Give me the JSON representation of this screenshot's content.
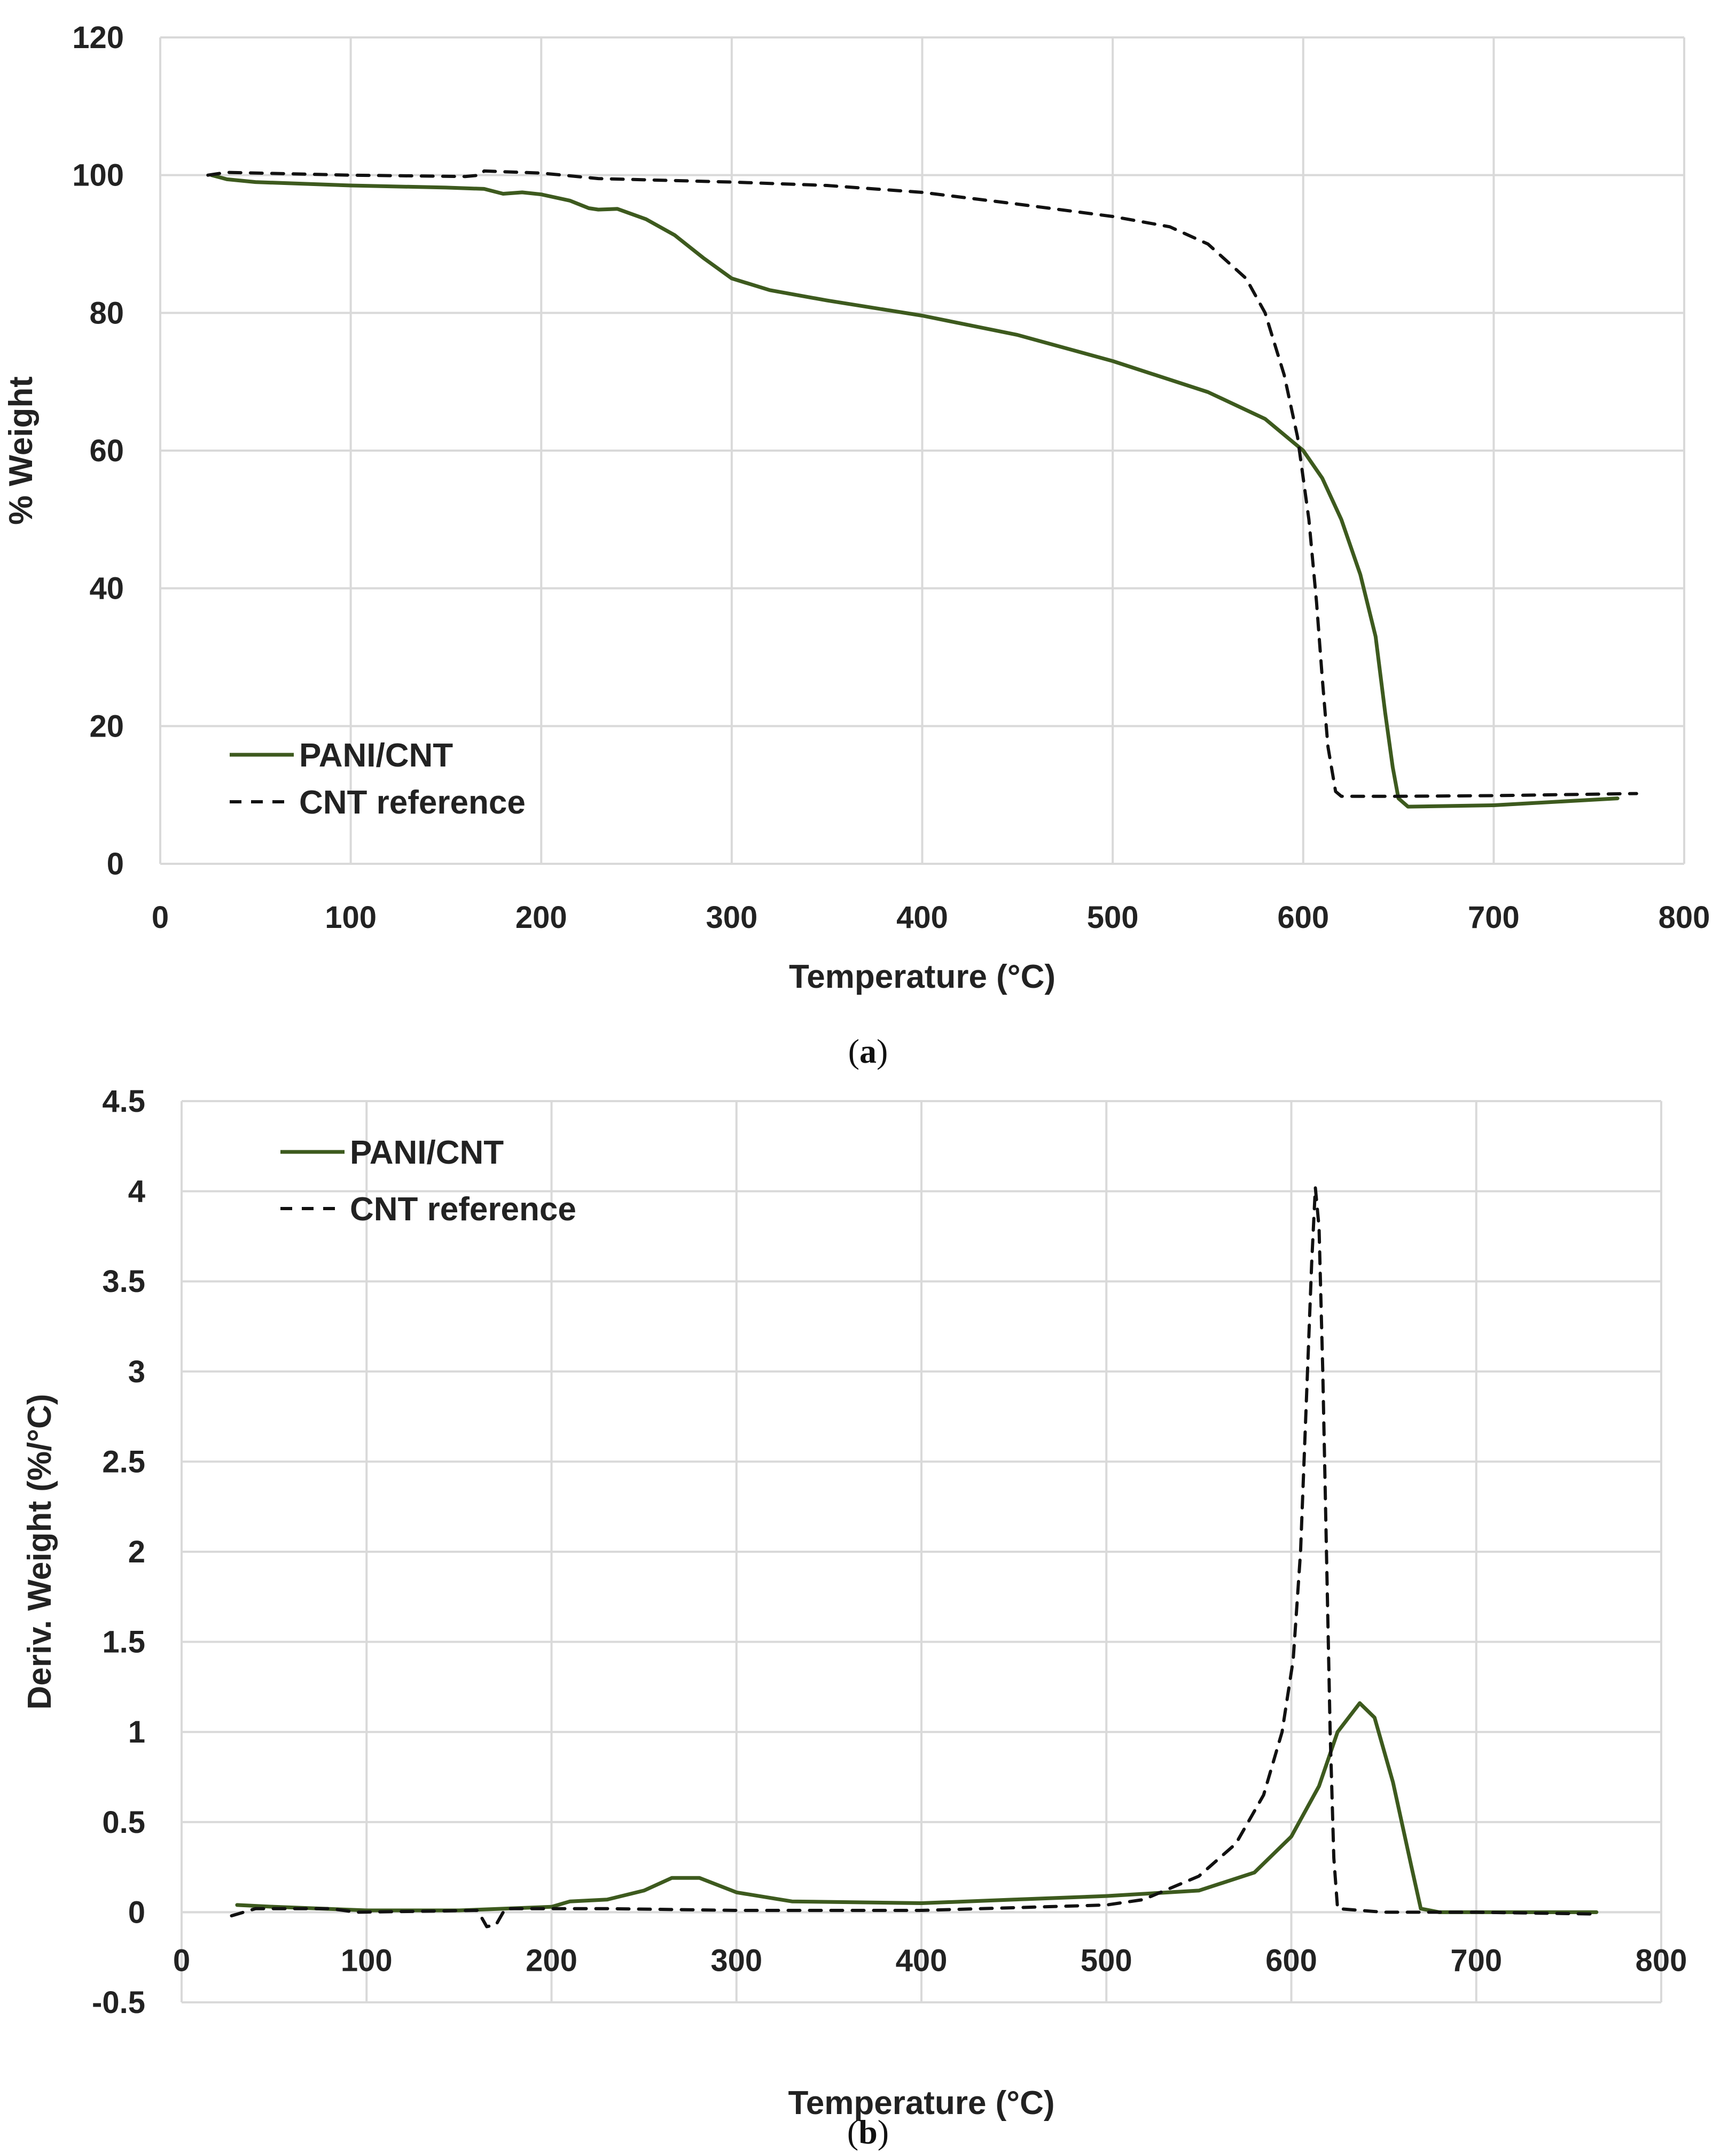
{
  "colors": {
    "pani": "#3d5a1e",
    "cnt": "#111111",
    "grid": "#d9d9d9",
    "text": "#222222"
  },
  "chart_data": [
    {
      "type": "line",
      "panel_label": "a",
      "xlabel": "Temperature (°C)",
      "ylabel": "% Weight",
      "xlim": [
        0,
        800
      ],
      "ylim": [
        0,
        120
      ],
      "x_ticks": [
        0,
        100,
        200,
        300,
        400,
        500,
        600,
        700,
        800
      ],
      "y_ticks": [
        0,
        20,
        40,
        60,
        80,
        100,
        120
      ],
      "grid": true,
      "legend_position": "bottom-left",
      "series": [
        {
          "name": "PANI/CNT",
          "style": "solid",
          "points": [
            [
              27,
              100
            ],
            [
              35,
              99.4
            ],
            [
              50,
              99
            ],
            [
              100,
              98.5
            ],
            [
              150,
              98.2
            ],
            [
              170,
              98
            ],
            [
              180,
              97.3
            ],
            [
              190,
              97.5
            ],
            [
              200,
              97.2
            ],
            [
              215,
              96.3
            ],
            [
              225,
              95.2
            ],
            [
              230,
              95
            ],
            [
              240,
              95.1
            ],
            [
              255,
              93.6
            ],
            [
              270,
              91.3
            ],
            [
              285,
              88
            ],
            [
              300,
              85
            ],
            [
              320,
              83.3
            ],
            [
              350,
              81.8
            ],
            [
              400,
              79.6
            ],
            [
              450,
              76.8
            ],
            [
              500,
              73
            ],
            [
              550,
              68.5
            ],
            [
              580,
              64.6
            ],
            [
              600,
              60
            ],
            [
              610,
              56
            ],
            [
              620,
              50
            ],
            [
              630,
              42
            ],
            [
              638,
              33
            ],
            [
              643,
              22
            ],
            [
              647,
              14
            ],
            [
              650,
              9.5
            ],
            [
              655,
              8.3
            ],
            [
              700,
              8.5
            ],
            [
              765,
              9.5
            ]
          ]
        },
        {
          "name": "CNT reference",
          "style": "dashed",
          "points": [
            [
              25,
              100
            ],
            [
              35,
              100.4
            ],
            [
              100,
              100
            ],
            [
              160,
              99.8
            ],
            [
              168,
              100
            ],
            [
              170,
              100.6
            ],
            [
              200,
              100.3
            ],
            [
              230,
              99.5
            ],
            [
              300,
              99
            ],
            [
              350,
              98.5
            ],
            [
              400,
              97.5
            ],
            [
              450,
              95.8
            ],
            [
              500,
              94
            ],
            [
              530,
              92.5
            ],
            [
              550,
              90
            ],
            [
              570,
              85
            ],
            [
              580,
              80
            ],
            [
              590,
              71
            ],
            [
              597,
              62
            ],
            [
              603,
              50
            ],
            [
              607,
              38
            ],
            [
              610,
              27
            ],
            [
              613,
              17
            ],
            [
              617,
              10.5
            ],
            [
              620,
              9.8
            ],
            [
              650,
              9.8
            ],
            [
              700,
              9.9
            ],
            [
              775,
              10.2
            ]
          ]
        }
      ]
    },
    {
      "type": "line",
      "panel_label": "b",
      "xlabel": "Temperature (°C)",
      "ylabel": "Deriv. Weight (%/°C)",
      "xlim": [
        0,
        800
      ],
      "ylim": [
        -0.5,
        4.5
      ],
      "x_ticks": [
        0,
        100,
        200,
        300,
        400,
        500,
        600,
        700,
        800
      ],
      "y_ticks": [
        -0.5,
        0,
        0.5,
        1,
        1.5,
        2,
        2.5,
        3,
        3.5,
        4,
        4.5
      ],
      "grid": true,
      "legend_position": "top-left",
      "series": [
        {
          "name": "PANI/CNT",
          "style": "solid",
          "points": [
            [
              30,
              0.04
            ],
            [
              50,
              0.03
            ],
            [
              100,
              0.01
            ],
            [
              150,
              0.01
            ],
            [
              200,
              0.03
            ],
            [
              210,
              0.06
            ],
            [
              230,
              0.07
            ],
            [
              250,
              0.12
            ],
            [
              265,
              0.19
            ],
            [
              280,
              0.19
            ],
            [
              300,
              0.11
            ],
            [
              330,
              0.06
            ],
            [
              400,
              0.05
            ],
            [
              450,
              0.07
            ],
            [
              500,
              0.09
            ],
            [
              550,
              0.12
            ],
            [
              580,
              0.22
            ],
            [
              600,
              0.42
            ],
            [
              615,
              0.7
            ],
            [
              625,
              1.0
            ],
            [
              637,
              1.16
            ],
            [
              645,
              1.08
            ],
            [
              655,
              0.72
            ],
            [
              665,
              0.25
            ],
            [
              670,
              0.02
            ],
            [
              680,
              0
            ],
            [
              765,
              0
            ]
          ]
        },
        {
          "name": "CNT reference",
          "style": "dashed",
          "points": [
            [
              27,
              -0.02
            ],
            [
              40,
              0.02
            ],
            [
              80,
              0.02
            ],
            [
              95,
              0
            ],
            [
              160,
              0.01
            ],
            [
              165,
              -0.08
            ],
            [
              170,
              -0.07
            ],
            [
              175,
              0.02
            ],
            [
              230,
              0.02
            ],
            [
              300,
              0.01
            ],
            [
              400,
              0.01
            ],
            [
              500,
              0.04
            ],
            [
              520,
              0.07
            ],
            [
              550,
              0.2
            ],
            [
              570,
              0.38
            ],
            [
              585,
              0.65
            ],
            [
              595,
              1.0
            ],
            [
              601,
              1.4
            ],
            [
              605,
              2.0
            ],
            [
              608,
              2.8
            ],
            [
              611,
              3.6
            ],
            [
              613,
              4.02
            ],
            [
              615,
              3.8
            ],
            [
              617,
              3.0
            ],
            [
              619,
              2.0
            ],
            [
              621,
              1.0
            ],
            [
              623,
              0.3
            ],
            [
              625,
              0.02
            ],
            [
              650,
              0
            ],
            [
              700,
              0
            ],
            [
              765,
              -0.01
            ]
          ]
        }
      ]
    }
  ]
}
